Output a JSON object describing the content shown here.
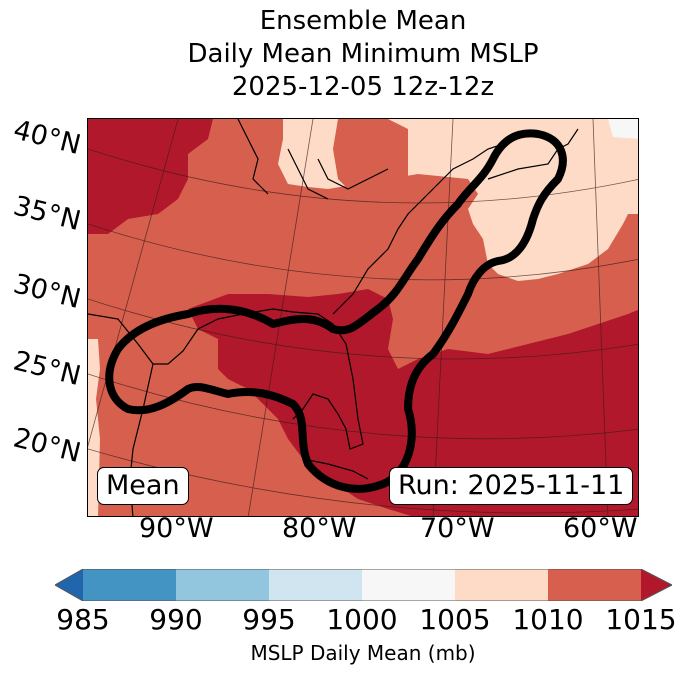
{
  "title_lines": [
    "Ensemble Mean",
    "Daily Mean Minimum MSLP",
    "2025-12-05 12z-12z"
  ],
  "map": {
    "lat_labels": [
      "40°N",
      "35°N",
      "30°N",
      "25°N",
      "20°N"
    ],
    "lon_labels": [
      "90°W",
      "80°W",
      "70°W",
      "60°W"
    ],
    "left_box": "Mean",
    "right_box": "Run: 2025-11-11",
    "fill_colors": {
      "1015+": "#b2182b",
      "1010-1015": "#d6604d",
      "1005-1010": "#fddbc7",
      "1000-1005": "#f7f7f7"
    },
    "contour_color": "#000000",
    "regions": {
      "northeast_canada": "1005-1010",
      "gulf_florida_atlantic": "1015+",
      "remainder": "1010-1015"
    }
  },
  "colorbar": {
    "label": "MSLP Daily Mean (mb)",
    "ticks": [
      "985",
      "990",
      "995",
      "1000",
      "1005",
      "1010",
      "1015"
    ],
    "bins": [
      {
        "range": "<985",
        "color": "#2166ac"
      },
      {
        "range": "985-990",
        "color": "#4393c3"
      },
      {
        "range": "990-995",
        "color": "#92c5de"
      },
      {
        "range": "995-1000",
        "color": "#d1e5f0"
      },
      {
        "range": "1000-1005",
        "color": "#f7f7f7"
      },
      {
        "range": "1005-1010",
        "color": "#fddbc7"
      },
      {
        "range": "1010-1015",
        "color": "#d6604d"
      },
      {
        "range": ">1015",
        "color": "#b2182b"
      }
    ]
  }
}
